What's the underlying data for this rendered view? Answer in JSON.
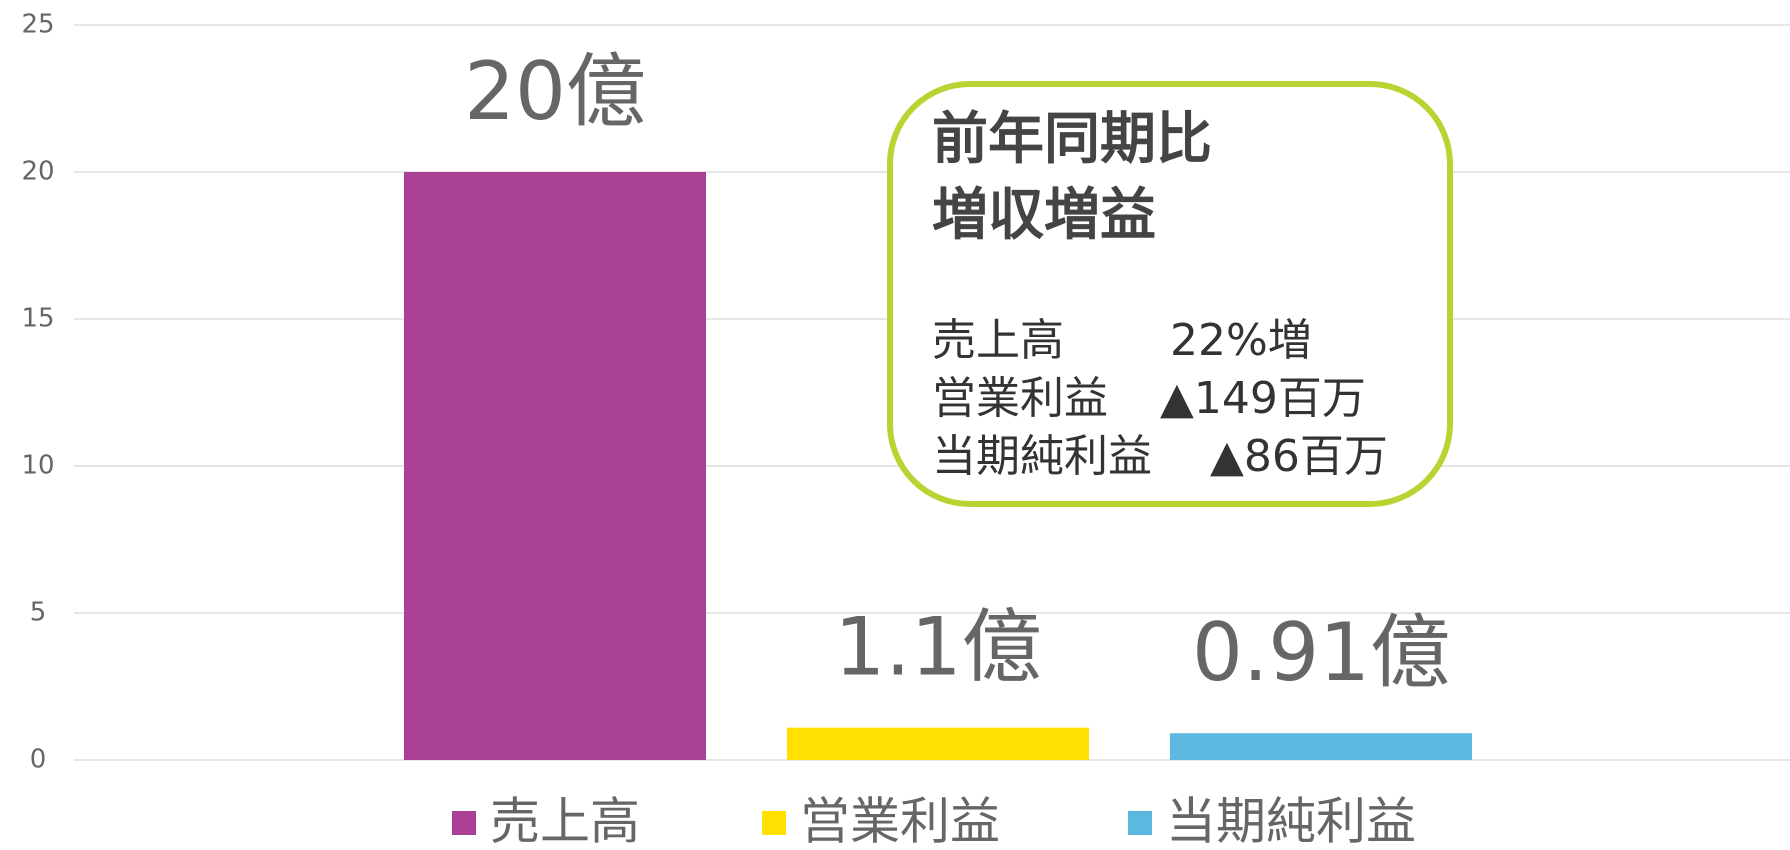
{
  "chart_data": {
    "type": "bar",
    "categories": [
      null
    ],
    "series": [
      {
        "name": "売上高",
        "color": "#a94093",
        "values": [
          20
        ],
        "value_labels": [
          "20億"
        ]
      },
      {
        "name": "営業利益",
        "color": "#ffe000",
        "values": [
          1.1
        ],
        "value_labels": [
          "1.1億"
        ]
      },
      {
        "name": "当期純利益",
        "color": "#5bb9e0",
        "values": [
          0.91
        ],
        "value_labels": [
          "0.91億"
        ]
      }
    ],
    "ylim": [
      0,
      25
    ],
    "yticks": [
      0,
      5,
      10,
      15,
      20,
      25
    ],
    "grid": true,
    "legend": "bottom",
    "annotation": {
      "title": [
        "前年同期比",
        "増収増益"
      ],
      "rows": [
        [
          "売上高",
          "22%増"
        ],
        [
          "営業利益",
          "▲149百万"
        ],
        [
          "当期純利益",
          "▲86百万"
        ]
      ]
    }
  }
}
